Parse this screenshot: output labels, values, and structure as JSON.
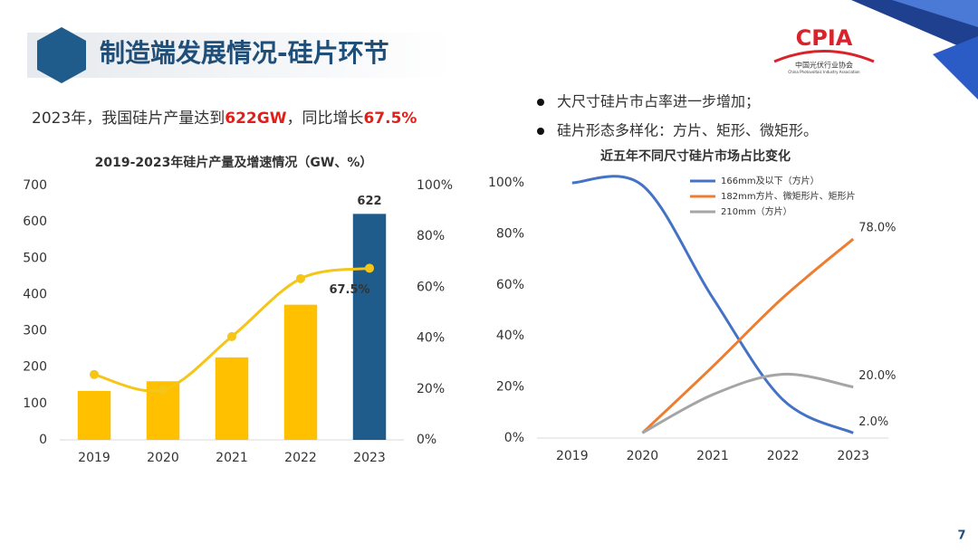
{
  "header": {
    "title": "制造端发展情况-硅片环节"
  },
  "logo": {
    "abbr": "CPIA",
    "name": "中国光伏行业协会",
    "name_en": "China Photovoltaic Industry Association"
  },
  "summary": [
    "2023年，我国硅片产量达到",
    "622GW",
    "，同比增长",
    "67.5%"
  ],
  "bullets": [
    "大尺寸硅片市占率进一步增加；",
    "硅片形态多样化：方片、矩形、微矩形。"
  ],
  "page_number": "7",
  "chart_data": [
    {
      "type": "bar",
      "title": "2019-2023年硅片产量及增速情况（GW、%）",
      "categories": [
        "2019",
        "2020",
        "2021",
        "2022",
        "2023"
      ],
      "series": [
        {
          "values": [
            134.7,
            161.3,
            227,
            372,
            622
          ],
          "colors": [
            "#FFC000",
            "#FFC000",
            "#FFC000",
            "#FFC000",
            "#1F5C8B"
          ],
          "value_labels": [
            null,
            null,
            null,
            null,
            "622"
          ]
        },
        {
          "type": "line",
          "axis": "y2",
          "color": "#F5C518",
          "values": [
            25.7,
            19.7,
            40.6,
            63.4,
            67.5
          ],
          "value_labels": [
            null,
            null,
            null,
            null,
            "67.5%"
          ]
        }
      ],
      "ylim": [
        0,
        700
      ],
      "yticks": [
        0,
        100,
        200,
        300,
        400,
        500,
        600,
        700
      ],
      "y2lim": [
        0,
        100
      ],
      "y2ticks": [
        {
          "value": 0,
          "label": "0%"
        },
        {
          "value": 20,
          "label": "20%"
        },
        {
          "value": 40,
          "label": "40%"
        },
        {
          "value": 60,
          "label": "60%"
        },
        {
          "value": 80,
          "label": "80%"
        },
        {
          "value": 100,
          "label": "100%"
        }
      ],
      "grid": false
    },
    {
      "type": "line",
      "title": "近五年不同尺寸硅片市场占比变化",
      "categories": [
        "2019",
        "2020",
        "2021",
        "2022",
        "2023"
      ],
      "series": [
        {
          "name": "166mm及以下（方片）",
          "color": "#4472C4",
          "values": [
            100,
            99,
            55,
            15,
            2.0
          ],
          "value_labels": [
            null,
            null,
            null,
            null,
            "2.0%"
          ]
        },
        {
          "name": "182mm方片、微矩形片、矩形片",
          "color": "#ED7D31",
          "values": [
            null,
            2,
            28,
            55,
            78.0
          ],
          "value_labels": [
            null,
            null,
            null,
            null,
            "78.0%"
          ]
        },
        {
          "name": "210mm（方片）",
          "color": "#A5A5A5",
          "values": [
            null,
            2,
            17,
            25,
            20.0
          ],
          "value_labels": [
            null,
            null,
            null,
            null,
            "20.0%"
          ]
        }
      ],
      "ylim": [
        0,
        100
      ],
      "yticks": [
        {
          "value": 0,
          "label": "0%"
        },
        {
          "value": 20,
          "label": "20%"
        },
        {
          "value": 40,
          "label": "40%"
        },
        {
          "value": 60,
          "label": "60%"
        },
        {
          "value": 80,
          "label": "80%"
        },
        {
          "value": 100,
          "label": "100%"
        }
      ],
      "grid": false,
      "legend": "top-right"
    }
  ]
}
